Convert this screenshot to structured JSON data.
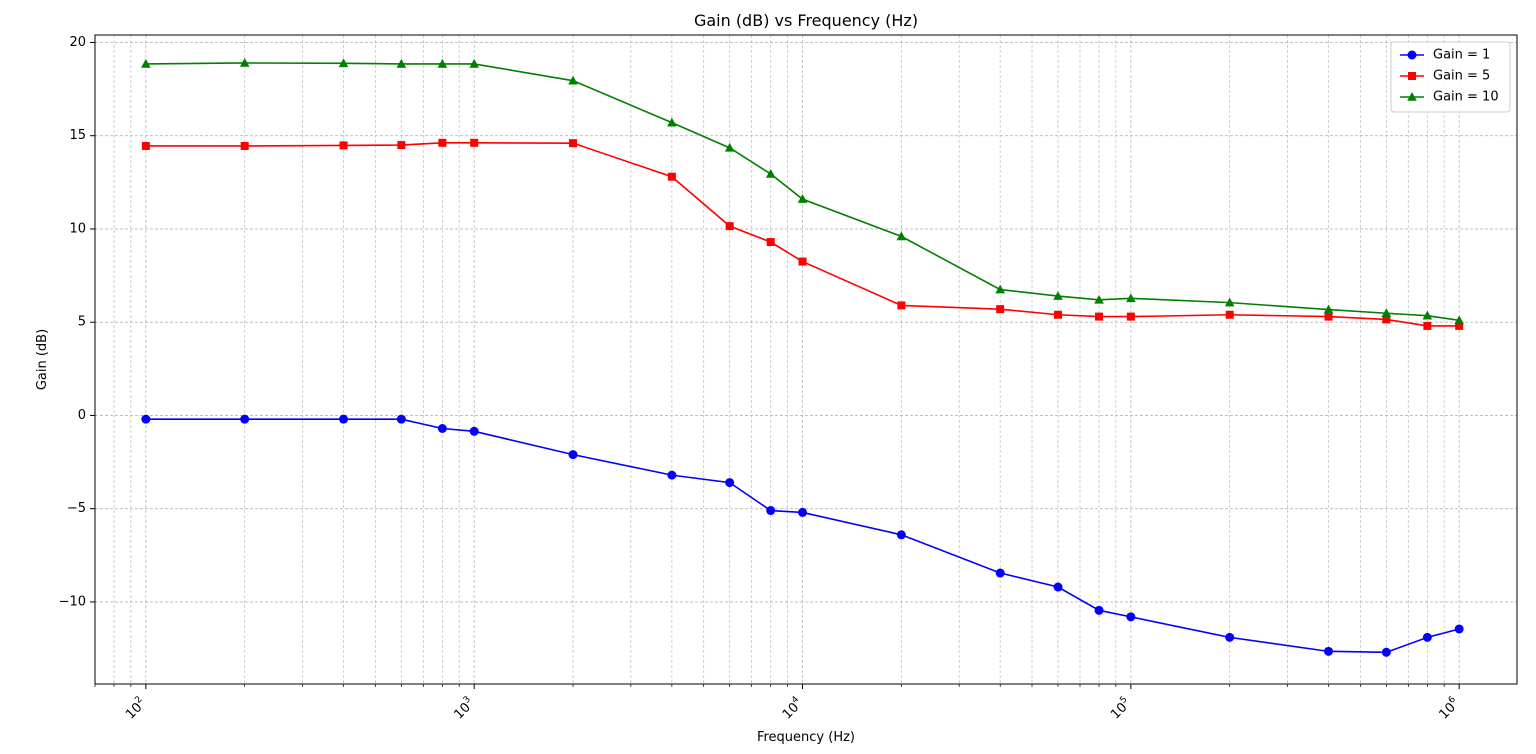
{
  "chart_data": {
    "type": "line",
    "title": "Gain (dB) vs Frequency (Hz)",
    "xlabel": "Frequency (Hz)",
    "ylabel": "Gain (dB)",
    "xscale": "log",
    "xlim": [
      70,
      1500000
    ],
    "ylim": [
      -14.4,
      20.4
    ],
    "x_ticks": [
      {
        "value": 100,
        "base": "10",
        "exp": "2"
      },
      {
        "value": 1000,
        "base": "10",
        "exp": "3"
      },
      {
        "value": 10000,
        "base": "10",
        "exp": "4"
      },
      {
        "value": 100000,
        "base": "10",
        "exp": "5"
      },
      {
        "value": 1000000,
        "base": "10",
        "exp": "6"
      }
    ],
    "y_ticks": [
      {
        "value": 20,
        "label": "20"
      },
      {
        "value": 15,
        "label": "15"
      },
      {
        "value": 10,
        "label": "10"
      },
      {
        "value": 5,
        "label": "5"
      },
      {
        "value": 0,
        "label": "0"
      },
      {
        "value": -5,
        "label": "−5"
      },
      {
        "value": -10,
        "label": "−10"
      }
    ],
    "grid": true,
    "legend_position": "top-right",
    "x": [
      100,
      200,
      400,
      600,
      800,
      1000,
      2000,
      4000,
      6000,
      8000,
      10000,
      20000,
      40000,
      60000,
      80000,
      100000,
      200000,
      400000,
      600000,
      800000,
      1000000
    ],
    "series": [
      {
        "name": "Gain = 1",
        "color": "#0000ff",
        "marker": "circle",
        "values": [
          -0.2,
          -0.2,
          -0.2,
          -0.2,
          -0.7,
          -0.85,
          -2.1,
          -3.2,
          -3.6,
          -5.1,
          -5.2,
          -6.4,
          -8.45,
          -9.2,
          -10.45,
          -10.8,
          -11.9,
          -12.65,
          -12.7,
          -11.9,
          -11.45
        ]
      },
      {
        "name": "Gain = 5",
        "color": "#ff0000",
        "marker": "square",
        "values": [
          14.45,
          14.45,
          14.48,
          14.5,
          14.62,
          14.62,
          14.6,
          12.8,
          10.15,
          9.3,
          8.25,
          5.9,
          5.7,
          5.4,
          5.3,
          5.3,
          5.4,
          5.3,
          5.15,
          4.8,
          4.8
        ]
      },
      {
        "name": "Gain = 10",
        "color": "#008000",
        "marker": "triangle",
        "values": [
          18.85,
          18.9,
          18.88,
          18.85,
          18.85,
          18.85,
          17.95,
          15.7,
          14.35,
          12.95,
          11.6,
          9.6,
          6.75,
          6.4,
          6.2,
          6.28,
          6.05,
          5.68,
          5.48,
          5.35,
          5.1
        ]
      }
    ]
  }
}
